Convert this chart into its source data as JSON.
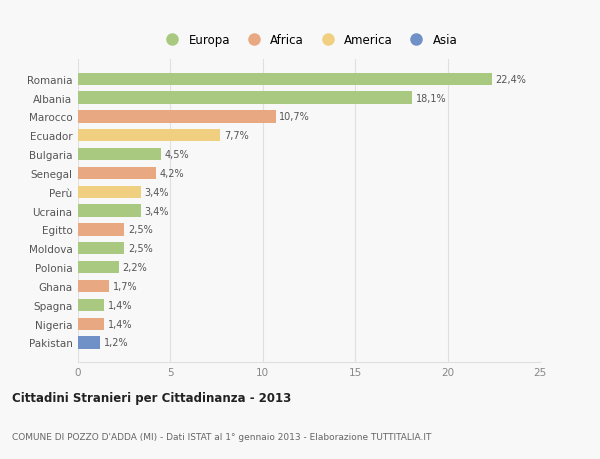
{
  "countries": [
    "Romania",
    "Albania",
    "Marocco",
    "Ecuador",
    "Bulgaria",
    "Senegal",
    "Perù",
    "Ucraina",
    "Egitto",
    "Moldova",
    "Polonia",
    "Ghana",
    "Spagna",
    "Nigeria",
    "Pakistan"
  ],
  "values": [
    22.4,
    18.1,
    10.7,
    7.7,
    4.5,
    4.2,
    3.4,
    3.4,
    2.5,
    2.5,
    2.2,
    1.7,
    1.4,
    1.4,
    1.2
  ],
  "labels": [
    "22,4%",
    "18,1%",
    "10,7%",
    "7,7%",
    "4,5%",
    "4,2%",
    "3,4%",
    "3,4%",
    "2,5%",
    "2,5%",
    "2,2%",
    "1,7%",
    "1,4%",
    "1,4%",
    "1,2%"
  ],
  "continents": [
    "Europa",
    "Europa",
    "Africa",
    "America",
    "Europa",
    "Africa",
    "America",
    "Europa",
    "Africa",
    "Europa",
    "Europa",
    "Africa",
    "Europa",
    "Africa",
    "Asia"
  ],
  "colors": {
    "Europa": "#a8c97f",
    "Africa": "#e8a882",
    "America": "#f0d080",
    "Asia": "#7090c8"
  },
  "title": "Cittadini Stranieri per Cittadinanza - 2013",
  "subtitle": "COMUNE DI POZZO D'ADDA (MI) - Dati ISTAT al 1° gennaio 2013 - Elaborazione TUTTITALIA.IT",
  "xlim": [
    0,
    25
  ],
  "xticks": [
    0,
    5,
    10,
    15,
    20,
    25
  ],
  "background_color": "#f8f8f8",
  "grid_color": "#e0e0e0",
  "legend_order": [
    "Europa",
    "Africa",
    "America",
    "Asia"
  ]
}
